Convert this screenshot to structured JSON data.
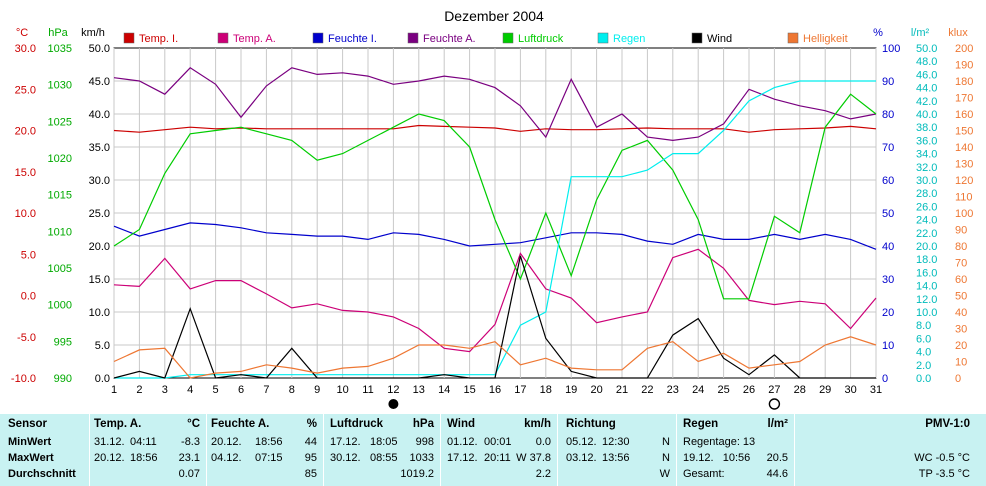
{
  "chart_data": {
    "type": "line",
    "title": "Dezember 2004",
    "x": [
      1,
      2,
      3,
      4,
      5,
      6,
      7,
      8,
      9,
      10,
      11,
      12,
      13,
      14,
      15,
      16,
      17,
      18,
      19,
      20,
      21,
      22,
      23,
      24,
      25,
      26,
      27,
      28,
      29,
      30,
      31
    ],
    "axes": {
      "temp_c": {
        "unit": "°C",
        "ylim": [
          -10,
          30
        ],
        "ticks": [
          "30.0",
          "25.0",
          "20.0",
          "15.0",
          "10.0",
          "5.0",
          "0.0",
          "-5.0",
          "-10.0"
        ]
      },
      "pressure_hpa": {
        "unit": "hPa",
        "ylim": [
          990,
          1040
        ],
        "ticks": [
          "1035",
          "1030",
          "1025",
          "1020",
          "1015",
          "1010",
          "1005",
          "1000",
          "995",
          "990"
        ]
      },
      "wind_kmh": {
        "unit": "km/h",
        "ylim": [
          0,
          50
        ],
        "ticks": [
          "50.0",
          "45.0",
          "40.0",
          "35.0",
          "30.0",
          "25.0",
          "20.0",
          "15.0",
          "10.0",
          "5.0",
          "0.0"
        ]
      },
      "humidity_pct": {
        "unit": "%",
        "ylim": [
          0,
          100
        ],
        "ticks": [
          "100",
          "90",
          "80",
          "70",
          "60",
          "50",
          "40",
          "30",
          "20",
          "10",
          "0"
        ]
      },
      "rain_lm2": {
        "unit": "l/m²",
        "ylim": [
          0,
          50
        ],
        "ticks": [
          "50.0",
          "48.0",
          "46.0",
          "44.0",
          "42.0",
          "40.0",
          "38.0",
          "36.0",
          "34.0",
          "32.0",
          "30.0",
          "28.0",
          "26.0",
          "24.0",
          "22.0",
          "20.0",
          "18.0",
          "16.0",
          "14.0",
          "12.0",
          "10.0",
          "8.0",
          "6.0",
          "4.0",
          "2.0",
          "0.0"
        ]
      },
      "light_klux": {
        "unit": "klux",
        "ylim": [
          0,
          200
        ],
        "ticks": [
          "200",
          "190",
          "180",
          "170",
          "160",
          "150",
          "140",
          "130",
          "120",
          "110",
          "100",
          "90",
          "80",
          "70",
          "60",
          "50",
          "40",
          "30",
          "20",
          "10",
          "0"
        ]
      }
    },
    "grid": true,
    "legend": "top",
    "moon_markers": [
      {
        "day": 12,
        "phase": "new"
      },
      {
        "day": 27,
        "phase": "full"
      }
    ],
    "series": [
      {
        "name": "Temp. I.",
        "color": "#cc0000",
        "axis": "temp_c",
        "values": [
          20.0,
          19.8,
          20.1,
          20.4,
          20.2,
          20.3,
          20.2,
          20.2,
          20.2,
          20.2,
          20.2,
          20.2,
          20.6,
          20.5,
          20.4,
          20.3,
          19.9,
          20.2,
          20.1,
          20.1,
          20.2,
          20.3,
          20.2,
          20.2,
          20.2,
          19.8,
          20.1,
          20.2,
          20.3,
          20.5,
          20.2
        ]
      },
      {
        "name": "Temp. A.",
        "color": "#cc0077",
        "axis": "temp_c",
        "values": [
          1.3,
          1.1,
          4.5,
          0.8,
          1.8,
          1.8,
          0.2,
          -1.5,
          -1.0,
          -1.8,
          -2.0,
          -2.6,
          -4.0,
          -6.4,
          -6.8,
          -3.5,
          5.1,
          0.8,
          -0.3,
          -3.3,
          -2.6,
          -2.0,
          4.6,
          5.6,
          3.3,
          -0.6,
          -1.1,
          -0.7,
          -1.0,
          -4.0,
          -0.3
        ]
      },
      {
        "name": "Feuchte I.",
        "color": "#0000cc",
        "axis": "humidity_pct",
        "values": [
          46,
          43,
          45,
          47,
          46.5,
          45.5,
          44,
          43.5,
          43,
          43,
          42,
          44,
          43.5,
          42,
          40,
          40.5,
          41,
          42.5,
          44,
          44,
          43.5,
          41.5,
          40.5,
          43.5,
          42,
          42,
          43.5,
          42,
          43.5,
          42,
          39
        ]
      },
      {
        "name": "Feuchte A.",
        "color": "#7a0080",
        "axis": "humidity_pct",
        "values": [
          91,
          90,
          86,
          94,
          89,
          79,
          88.5,
          94,
          92,
          92.5,
          91.5,
          89,
          90,
          91.5,
          90.5,
          88,
          82.5,
          73,
          90.5,
          76,
          80,
          73,
          72,
          73,
          77,
          87.5,
          84.5,
          82.5,
          81,
          78.5,
          80
        ]
      },
      {
        "name": "Luftdruck",
        "color": "#00cc00",
        "axis": "pressure_hpa",
        "values": [
          1010.0,
          1012.5,
          1021.0,
          1027.0,
          1027.5,
          1028.0,
          1027.0,
          1026.0,
          1023.0,
          1024.0,
          1026.0,
          1028.0,
          1030.0,
          1029.0,
          1025.0,
          1014.0,
          1005.0,
          1015.0,
          1005.5,
          1017.0,
          1024.5,
          1026.0,
          1021.5,
          1014.0,
          1002.0,
          1002.0,
          1014.5,
          1012.0,
          1028.0,
          1033.0,
          1030.0
        ]
      },
      {
        "name": "Regen",
        "color": "#00eeee",
        "axis": "rain_lm2",
        "values": [
          0,
          0,
          0,
          0.5,
          0.5,
          0.5,
          0.5,
          0.5,
          0.5,
          0.5,
          0.5,
          0.5,
          0.5,
          0.5,
          0.5,
          0.5,
          8,
          10,
          30.5,
          30.5,
          30.5,
          31.5,
          34,
          34,
          37.5,
          42,
          44,
          45,
          45,
          45,
          45
        ]
      },
      {
        "name": "Wind",
        "color": "#000000",
        "axis": "wind_kmh",
        "values": [
          0,
          1,
          0,
          10.5,
          0,
          0.5,
          0,
          4.5,
          0,
          0,
          0,
          0,
          0,
          0.5,
          0,
          0,
          18.5,
          6,
          1,
          0,
          0,
          0,
          6.5,
          9,
          3,
          0.5,
          3.5,
          0,
          0,
          0,
          0
        ]
      },
      {
        "name": "Helligkeit",
        "color": "#ee7733",
        "axis": "light_klux",
        "values": [
          10,
          17,
          18,
          0,
          3,
          4,
          8,
          6,
          3,
          6,
          7,
          12,
          20,
          20,
          18,
          22,
          8,
          12,
          6,
          5,
          5,
          18,
          22,
          10,
          15,
          6,
          8,
          10,
          20,
          25,
          20
        ]
      }
    ]
  },
  "table": {
    "sensor": {
      "header": "Sensor",
      "rows": [
        "MinWert",
        "MaxWert",
        "Durchschnitt"
      ]
    },
    "temp_a": {
      "header": "Temp. A.",
      "unit": "°C",
      "rows": [
        [
          "31.12.",
          "04:11",
          "-8.3"
        ],
        [
          "20.12.",
          "18:56",
          "23.1"
        ],
        [
          "",
          "",
          "0.07"
        ]
      ]
    },
    "feuchte_a": {
      "header": "Feuchte A.",
      "unit": "%",
      "rows": [
        [
          "20.12.",
          "18:56",
          "44"
        ],
        [
          "04.12.",
          "07:15",
          "95"
        ],
        [
          "",
          "",
          "85"
        ]
      ]
    },
    "luftdruck": {
      "header": "Luftdruck",
      "unit": "hPa",
      "rows": [
        [
          "17.12.",
          "18:05",
          "998"
        ],
        [
          "30.12.",
          "08:55",
          "1033"
        ],
        [
          "",
          "",
          "1019.2"
        ]
      ]
    },
    "wind": {
      "header": "Wind",
      "unit": "km/h",
      "rows": [
        [
          "01.12.",
          "00:01",
          "0.0"
        ],
        [
          "17.12.",
          "20:11",
          "W 37.8"
        ],
        [
          "",
          "",
          "2.2"
        ]
      ]
    },
    "richtung": {
      "header": "Richtung",
      "rows": [
        [
          "05.12.",
          "12:30",
          "N"
        ],
        [
          "03.12.",
          "13:56",
          "N"
        ],
        [
          "",
          "",
          "W"
        ]
      ]
    },
    "regen": {
      "header": "Regen",
      "unit": "l/m²",
      "rows": [
        [
          "Regentage: 13",
          ""
        ],
        [
          "19.12.   10:56",
          "20.5"
        ],
        [
          "Gesamt:",
          "44.6"
        ]
      ]
    },
    "pmv": {
      "header": "PMV-1:0",
      "rows": [
        "",
        "WC -0.5 °C",
        "TP -3.5 °C"
      ]
    }
  }
}
